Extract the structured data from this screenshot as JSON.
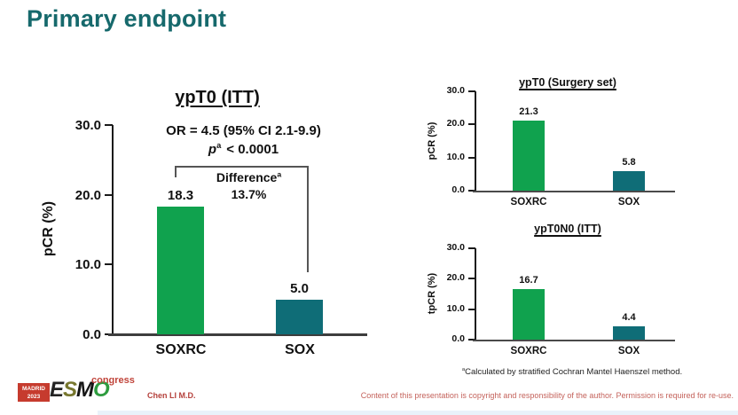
{
  "slide": {
    "title": "Primary endpoint",
    "footnote": {
      "sup": "a",
      "text": "Calculated by stratified Cochran Mantel Haenszel method."
    },
    "presenter": "Chen LI M.D.",
    "disclaimer": "Content of this presentation is copyright and responsibility of the author. Permission is required for re-use.",
    "logo": {
      "location": "MADRID",
      "year": "2023",
      "org_letters": [
        "E",
        "S",
        "M",
        "O"
      ],
      "congress": "congress"
    }
  },
  "colors": {
    "title_teal": "#16696c",
    "bar_green": "#10a24e",
    "bar_teal": "#0f6d77",
    "accent_red": "#c0443a",
    "axis_black": "#1a1a1a"
  },
  "chart_data": [
    {
      "type": "bar",
      "title": "ypT0 (ITT)",
      "ylabel": "pCR (%)",
      "categories": [
        "SOXRC",
        "SOX"
      ],
      "values": [
        18.3,
        5.0
      ],
      "value_labels": [
        "18.3",
        "5.0"
      ],
      "yticks": [
        "30.0",
        "20.0",
        "10.0",
        "0.0"
      ],
      "ylim": [
        0,
        30
      ],
      "grid": false,
      "legend": "none",
      "series_colors": [
        "#10a24e",
        "#0f6d77"
      ],
      "annotations": {
        "or": "OR = 4.5 (95% CI 2.1-9.9)",
        "p_italic": "p",
        "p_sup": "a",
        "p_rest": "< 0.0001",
        "difference_label": "Difference",
        "difference_sup": "a",
        "difference_value": "13.7%"
      }
    },
    {
      "type": "bar",
      "title": "ypT0 (Surgery set)",
      "ylabel": "pCR (%)",
      "categories": [
        "SOXRC",
        "SOX"
      ],
      "values": [
        21.3,
        5.8
      ],
      "value_labels": [
        "21.3",
        "5.8"
      ],
      "yticks": [
        "30.0",
        "20.0",
        "10.0",
        "0.0"
      ],
      "ylim": [
        0,
        30
      ],
      "grid": false,
      "legend": "none",
      "series_colors": [
        "#10a24e",
        "#0f6d77"
      ]
    },
    {
      "type": "bar",
      "title": "ypT0N0 (ITT)",
      "ylabel": "tpCR (%)",
      "categories": [
        "SOXRC",
        "SOX"
      ],
      "values": [
        16.7,
        4.4
      ],
      "value_labels": [
        "16.7",
        "4.4"
      ],
      "yticks": [
        "30.0",
        "20.0",
        "10.0",
        "0.0"
      ],
      "ylim": [
        0,
        30
      ],
      "grid": false,
      "legend": "none",
      "series_colors": [
        "#10a24e",
        "#0f6d77"
      ]
    }
  ]
}
